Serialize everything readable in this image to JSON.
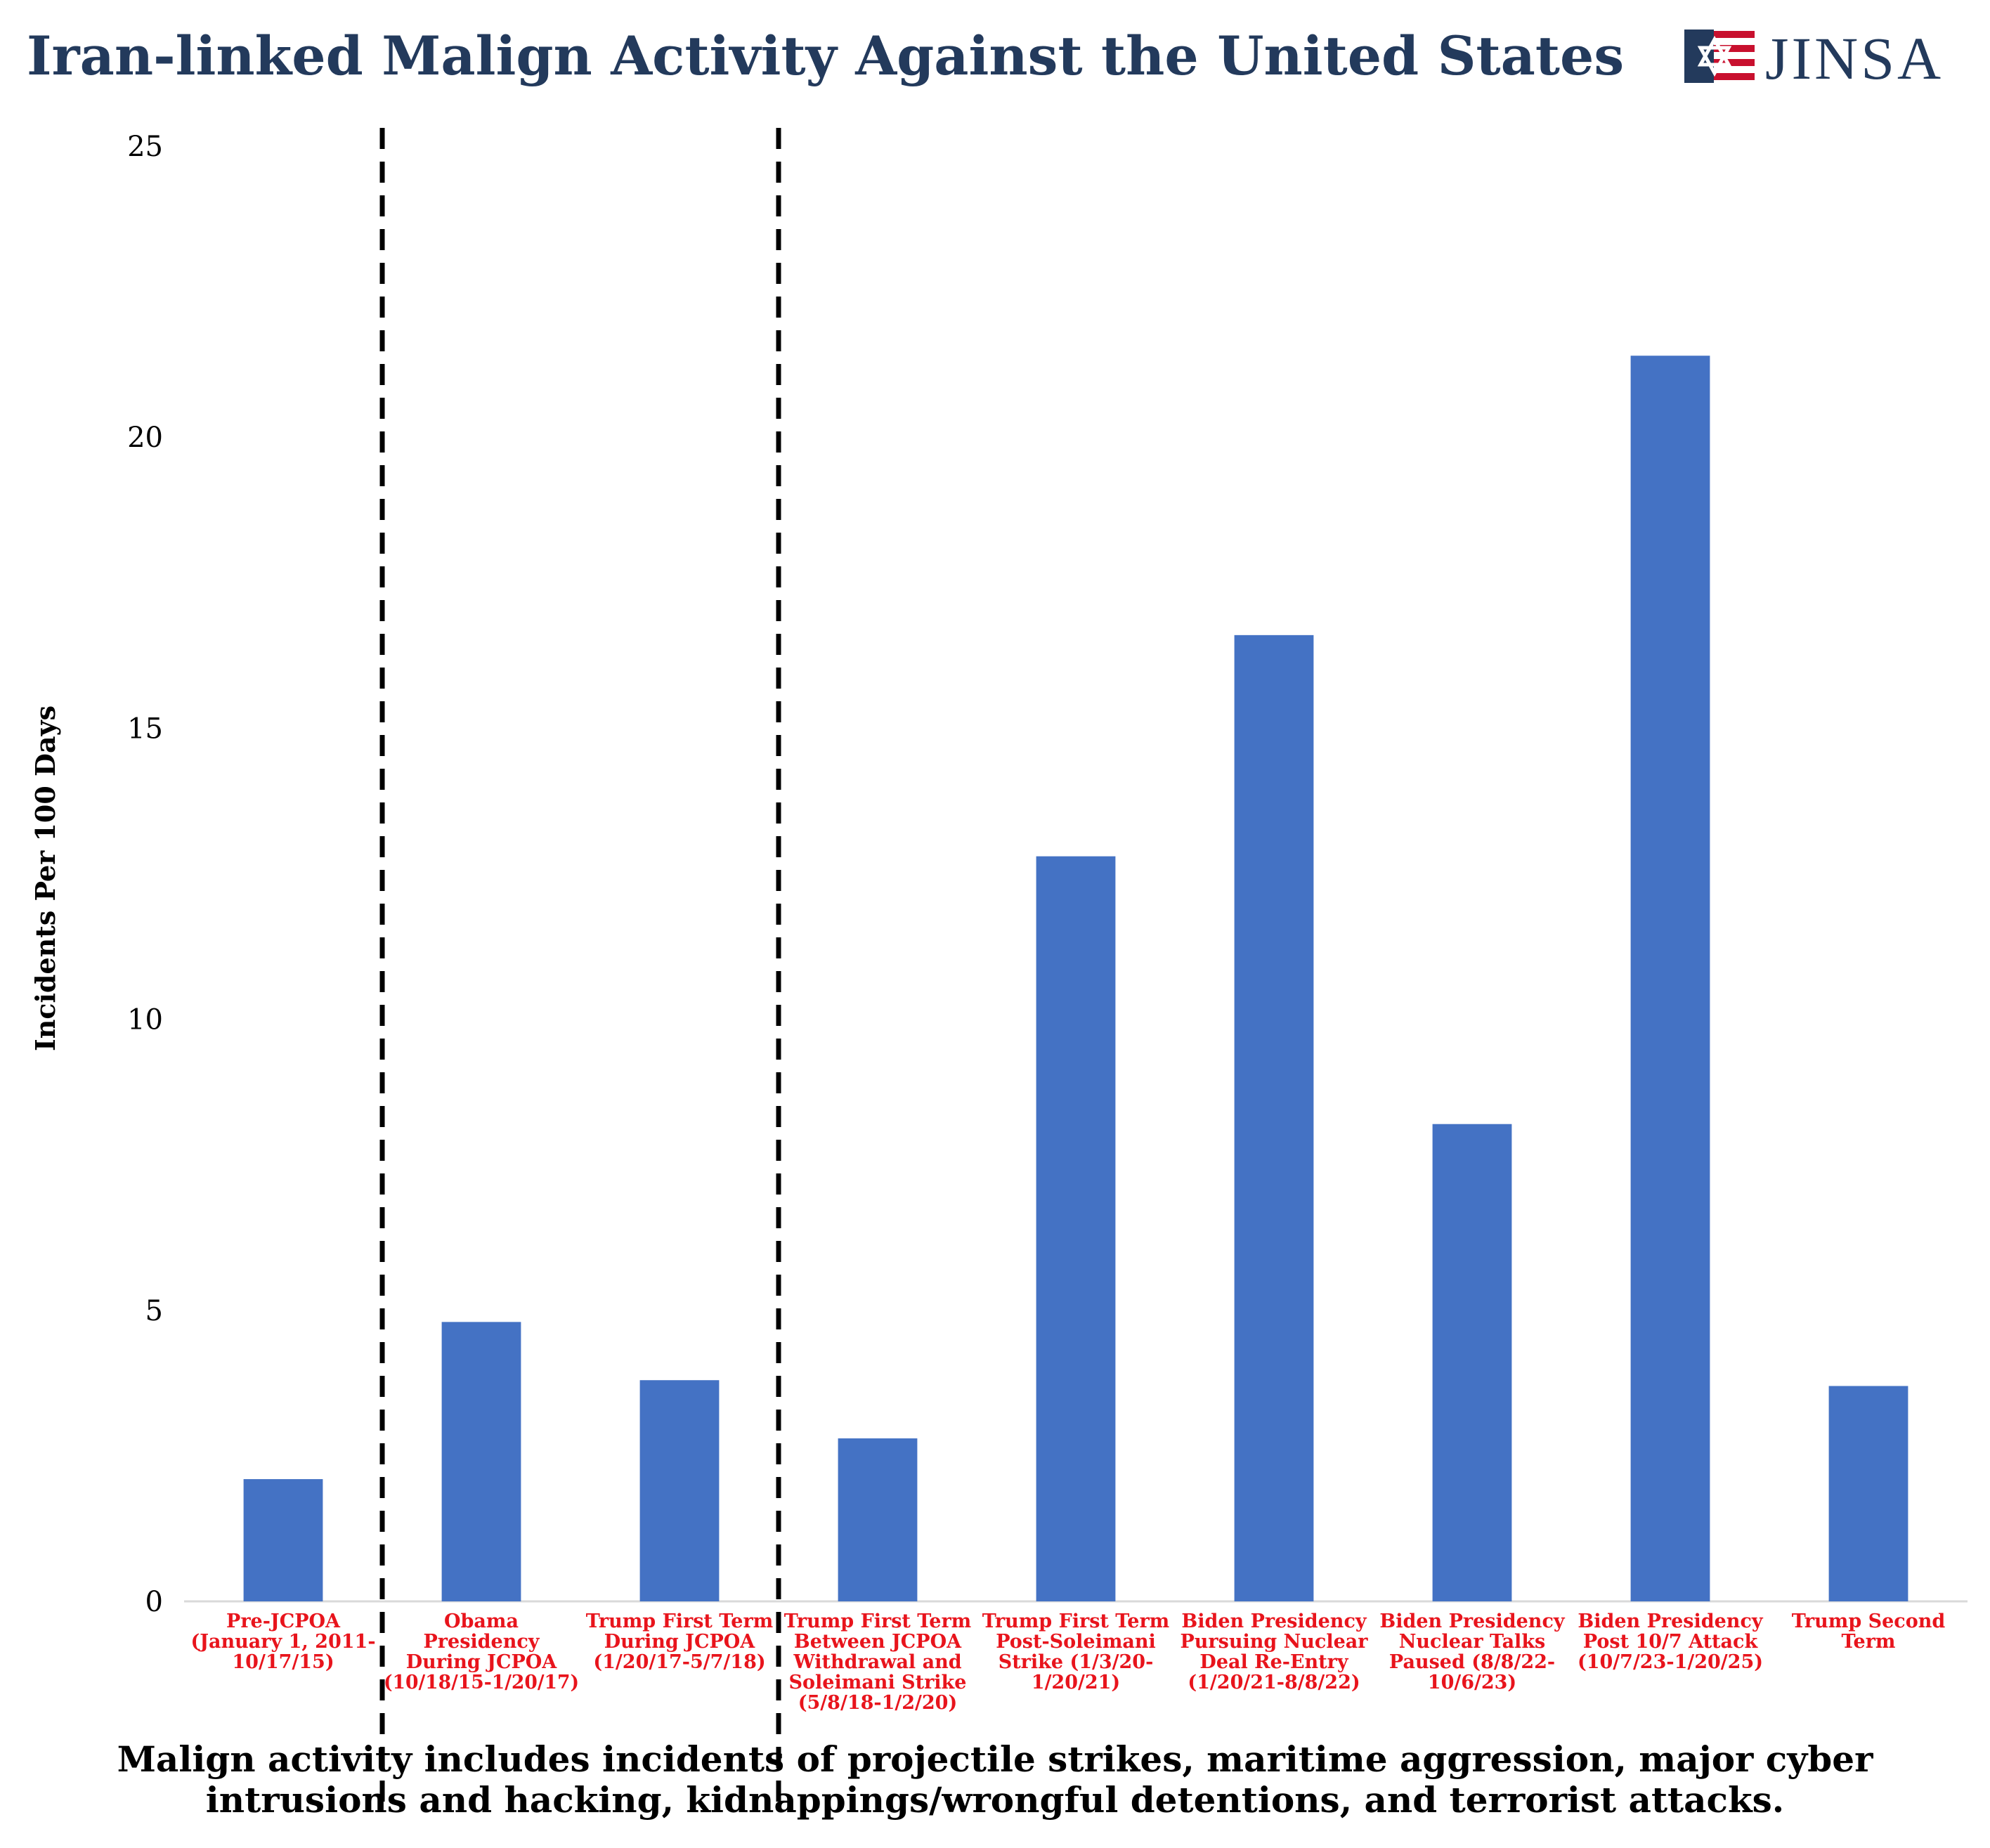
{
  "header": {
    "title": "Iran-linked Malign Activity Against the United States",
    "logo_text": "JINSA"
  },
  "chart_data": {
    "type": "bar",
    "title": "Iran-linked Malign Activity Against the United States",
    "ylabel": "Incidents Per 100 Days",
    "xlabel": "",
    "ylim": [
      0,
      25
    ],
    "yticks": [
      "0",
      "5",
      "10",
      "15",
      "20",
      "25"
    ],
    "categories": [
      [
        "Pre-JCPOA",
        "(January 1, 2011-",
        "10/17/15)"
      ],
      [
        "Obama",
        "Presidency",
        "During JCPOA",
        "(10/18/15-1/20/17)"
      ],
      [
        "Trump First Term",
        "During JCPOA",
        "(1/20/17-5/7/18)"
      ],
      [
        "Trump First Term",
        "Between JCPOA",
        "Withdrawal and",
        "Soleimani Strike",
        "(5/8/18-1/2/20)"
      ],
      [
        "Trump First Term",
        "Post-Soleimani",
        "Strike (1/3/20-",
        "1/20/21)"
      ],
      [
        "Biden Presidency",
        "Pursuing Nuclear",
        "Deal Re-Entry",
        "(1/20/21-8/8/22)"
      ],
      [
        "Biden Presidency",
        "Nuclear Talks",
        "Paused (8/8/22-",
        "10/6/23)"
      ],
      [
        "Biden Presidency",
        "Post 10/7 Attack",
        "(10/7/23-1/20/25)"
      ],
      [
        "Trump Second",
        "Term"
      ]
    ],
    "values": [
      2.1,
      4.8,
      3.8,
      2.8,
      12.8,
      16.6,
      8.2,
      21.4,
      3.7
    ],
    "dividers_after_category": [
      0,
      2
    ],
    "grid": false,
    "legend": "none",
    "bar_color": "#4472c4",
    "tick_label_color": "#e8141c"
  },
  "footnote": {
    "lines": [
      "Malign activity includes incidents of projectile strikes, maritime aggression, major cyber",
      "intrusions and hacking, kidnappings/wrongful detentions, and terrorist attacks."
    ]
  },
  "colors": {
    "title": "#233a5c",
    "bar": "#4472c4",
    "category_label": "#e8141c",
    "logo_red": "#c8102e",
    "logo_blue": "#233a5c"
  }
}
